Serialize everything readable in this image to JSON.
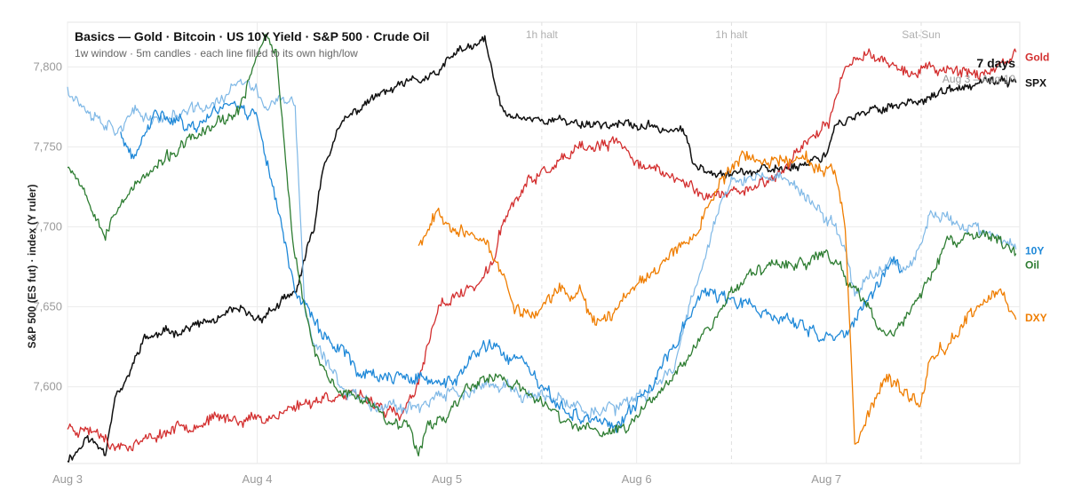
{
  "chart_data": {
    "type": "line",
    "title": "Basics — Gold · Bitcoin · US 10Y Yield · S&P 500 · Crude Oil",
    "subtitle": "1w window · 5m candles · each line filled to its own high/low",
    "ylabel": "S&P 500 (ES fut) · index (Y ruler)",
    "ylim": [
      7552,
      7828
    ],
    "y_ticks": [
      7600,
      7650,
      7700,
      7750,
      7800
    ],
    "y_tick_labels": [
      "7,600",
      "7,650",
      "7,700",
      "7,750",
      "7,800"
    ],
    "x_range": [
      0,
      5.02
    ],
    "x_ticks": [
      0,
      1,
      2,
      3,
      4
    ],
    "x_tick_labels": [
      "Aug 3",
      "Aug 4",
      "Aug 5",
      "Aug 6",
      "Aug 7"
    ],
    "grid": true,
    "session_markers": [
      {
        "label": "1h halt",
        "x": 2.5
      },
      {
        "label": "1h halt",
        "x": 3.5
      },
      {
        "label": "Sat-Sun",
        "x": 4.5
      }
    ],
    "range_badge": {
      "title": "7 days",
      "subtitle": "Aug 3 – Aug 10"
    },
    "series": [
      {
        "name": "SPX",
        "color": "#111111",
        "width": 1.5,
        "vol": 1.4,
        "seed": 11,
        "points": [
          [
            0,
            7555
          ],
          [
            0.05,
            7560
          ],
          [
            0.1,
            7568
          ],
          [
            0.2,
            7560
          ],
          [
            0.25,
            7595
          ],
          [
            0.3,
            7600
          ],
          [
            0.4,
            7630
          ],
          [
            0.6,
            7636
          ],
          [
            0.8,
            7642
          ],
          [
            0.9,
            7648
          ],
          [
            1.0,
            7642
          ],
          [
            1.1,
            7650
          ],
          [
            1.2,
            7658
          ],
          [
            1.3,
            7700
          ],
          [
            1.35,
            7740
          ],
          [
            1.45,
            7765
          ],
          [
            1.6,
            7780
          ],
          [
            1.8,
            7790
          ],
          [
            1.95,
            7795
          ],
          [
            2.05,
            7810
          ],
          [
            2.15,
            7812
          ],
          [
            2.2,
            7818
          ],
          [
            2.25,
            7790
          ],
          [
            2.3,
            7770
          ],
          [
            2.45,
            7768
          ],
          [
            2.7,
            7765
          ],
          [
            2.9,
            7764
          ],
          [
            3.1,
            7762
          ],
          [
            3.25,
            7760
          ],
          [
            3.3,
            7738
          ],
          [
            3.5,
            7734
          ],
          [
            3.7,
            7735
          ],
          [
            3.9,
            7740
          ],
          [
            4.0,
            7746
          ],
          [
            4.05,
            7765
          ],
          [
            4.15,
            7768
          ],
          [
            4.3,
            7775
          ],
          [
            4.45,
            7778
          ],
          [
            4.55,
            7782
          ],
          [
            4.7,
            7786
          ],
          [
            4.85,
            7790
          ],
          [
            5.0,
            7792
          ]
        ]
      },
      {
        "name": "Gold",
        "color": "#d32f2f",
        "width": 1.3,
        "vol": 1.8,
        "seed": 23,
        "points": [
          [
            0,
            7575
          ],
          [
            0.2,
            7572
          ],
          [
            0.22,
            7562
          ],
          [
            0.4,
            7566
          ],
          [
            0.6,
            7576
          ],
          [
            0.8,
            7580
          ],
          [
            1.0,
            7580
          ],
          [
            1.1,
            7582
          ],
          [
            1.2,
            7588
          ],
          [
            1.4,
            7595
          ],
          [
            1.6,
            7592
          ],
          [
            1.75,
            7580
          ],
          [
            1.85,
            7600
          ],
          [
            1.95,
            7650
          ],
          [
            2.1,
            7660
          ],
          [
            2.2,
            7668
          ],
          [
            2.25,
            7680
          ],
          [
            2.3,
            7705
          ],
          [
            2.35,
            7715
          ],
          [
            2.45,
            7730
          ],
          [
            2.6,
            7740
          ],
          [
            2.7,
            7748
          ],
          [
            2.9,
            7752
          ],
          [
            3.0,
            7742
          ],
          [
            3.1,
            7735
          ],
          [
            3.2,
            7730
          ],
          [
            3.3,
            7725
          ],
          [
            3.4,
            7718
          ],
          [
            3.6,
            7725
          ],
          [
            3.75,
            7732
          ],
          [
            3.8,
            7740
          ],
          [
            3.9,
            7755
          ],
          [
            4.0,
            7760
          ],
          [
            4.1,
            7800
          ],
          [
            4.2,
            7810
          ],
          [
            4.3,
            7805
          ],
          [
            4.45,
            7795
          ],
          [
            4.55,
            7800
          ],
          [
            4.7,
            7798
          ],
          [
            4.85,
            7796
          ],
          [
            4.95,
            7800
          ],
          [
            5.0,
            7808
          ]
        ]
      },
      {
        "name": "10Y",
        "color": "#7fb8e6",
        "width": 1.2,
        "vol": 2.0,
        "seed": 37,
        "points": [
          [
            0,
            7788
          ],
          [
            0.05,
            7780
          ],
          [
            0.15,
            7770
          ],
          [
            0.25,
            7762
          ],
          [
            0.35,
            7770
          ],
          [
            0.5,
            7768
          ],
          [
            0.65,
            7772
          ],
          [
            0.8,
            7778
          ],
          [
            0.9,
            7790
          ],
          [
            1.0,
            7785
          ],
          [
            1.05,
            7775
          ],
          [
            1.1,
            7780
          ],
          [
            1.2,
            7775
          ],
          [
            1.25,
            7650
          ],
          [
            1.3,
            7625
          ],
          [
            1.45,
            7600
          ],
          [
            1.6,
            7590
          ],
          [
            1.8,
            7588
          ],
          [
            1.9,
            7590
          ],
          [
            2.0,
            7595
          ],
          [
            2.2,
            7598
          ],
          [
            2.3,
            7602
          ],
          [
            2.4,
            7595
          ],
          [
            2.6,
            7590
          ],
          [
            2.8,
            7585
          ],
          [
            3.0,
            7590
          ],
          [
            3.1,
            7600
          ],
          [
            3.2,
            7615
          ],
          [
            3.3,
            7660
          ],
          [
            3.4,
            7700
          ],
          [
            3.5,
            7728
          ],
          [
            3.6,
            7730
          ],
          [
            3.75,
            7732
          ],
          [
            3.85,
            7725
          ],
          [
            3.95,
            7710
          ],
          [
            4.05,
            7700
          ],
          [
            4.1,
            7685
          ],
          [
            4.15,
            7660
          ],
          [
            4.25,
            7670
          ],
          [
            4.35,
            7680
          ],
          [
            4.45,
            7675
          ],
          [
            4.55,
            7710
          ],
          [
            4.65,
            7705
          ],
          [
            4.75,
            7700
          ],
          [
            4.85,
            7695
          ],
          [
            4.95,
            7690
          ],
          [
            5.0,
            7686
          ]
        ]
      },
      {
        "name": "",
        "color": "#1e88d8",
        "width": 1.3,
        "vol": 2.1,
        "seed": 41,
        "points": [
          [
            0.28,
            7758
          ],
          [
            0.35,
            7740
          ],
          [
            0.45,
            7768
          ],
          [
            0.55,
            7770
          ],
          [
            0.65,
            7762
          ],
          [
            0.75,
            7770
          ],
          [
            0.85,
            7780
          ],
          [
            0.9,
            7775
          ],
          [
            1.0,
            7770
          ],
          [
            1.2,
            7662
          ],
          [
            1.35,
            7630
          ],
          [
            1.45,
            7625
          ],
          [
            1.55,
            7608
          ],
          [
            2.0,
            7602
          ],
          [
            2.1,
            7612
          ],
          [
            2.2,
            7625
          ],
          [
            2.4,
            7615
          ],
          [
            2.55,
            7590
          ],
          [
            2.7,
            7582
          ],
          [
            2.9,
            7575
          ],
          [
            3.05,
            7595
          ],
          [
            3.25,
            7640
          ],
          [
            3.35,
            7660
          ],
          [
            4.05,
            7630
          ],
          [
            4.15,
            7640
          ],
          [
            4.25,
            7660
          ],
          [
            4.35,
            7680
          ],
          [
            4.4,
            7675
          ]
        ]
      },
      {
        "name": "Oil",
        "color": "#2e7d32",
        "width": 1.3,
        "vol": 1.8,
        "seed": 53,
        "points": [
          [
            0,
            7740
          ],
          [
            0.05,
            7732
          ],
          [
            0.1,
            7720
          ],
          [
            0.15,
            7710
          ],
          [
            0.2,
            7695
          ],
          [
            0.3,
            7720
          ],
          [
            0.4,
            7730
          ],
          [
            0.5,
            7740
          ],
          [
            0.6,
            7750
          ],
          [
            0.8,
            7765
          ],
          [
            0.9,
            7770
          ],
          [
            0.95,
            7790
          ],
          [
            1.0,
            7810
          ],
          [
            1.05,
            7820
          ],
          [
            1.1,
            7810
          ],
          [
            1.15,
            7740
          ],
          [
            1.2,
            7680
          ],
          [
            1.25,
            7650
          ],
          [
            1.3,
            7620
          ],
          [
            1.4,
            7600
          ],
          [
            1.5,
            7595
          ],
          [
            1.6,
            7590
          ],
          [
            1.7,
            7580
          ],
          [
            1.8,
            7575
          ],
          [
            1.85,
            7560
          ],
          [
            1.9,
            7578
          ],
          [
            2.0,
            7580
          ],
          [
            2.1,
            7600
          ],
          [
            2.2,
            7605
          ],
          [
            2.3,
            7605
          ],
          [
            2.5,
            7590
          ],
          [
            2.6,
            7580
          ],
          [
            2.8,
            7570
          ],
          [
            2.95,
            7575
          ],
          [
            3.1,
            7595
          ],
          [
            3.2,
            7610
          ],
          [
            3.3,
            7625
          ],
          [
            3.4,
            7640
          ],
          [
            3.5,
            7660
          ],
          [
            3.6,
            7670
          ],
          [
            3.7,
            7675
          ],
          [
            3.8,
            7680
          ],
          [
            3.9,
            7675
          ],
          [
            4.0,
            7685
          ],
          [
            4.1,
            7670
          ],
          [
            4.2,
            7650
          ],
          [
            4.3,
            7635
          ],
          [
            4.35,
            7630
          ],
          [
            4.45,
            7650
          ],
          [
            4.55,
            7670
          ],
          [
            4.65,
            7690
          ],
          [
            4.8,
            7695
          ],
          [
            4.9,
            7692
          ],
          [
            5.0,
            7685
          ]
        ]
      },
      {
        "name": "DXY",
        "color": "#ef7d00",
        "width": 1.3,
        "vol": 2.0,
        "seed": 67,
        "points": [
          [
            1.85,
            7690
          ],
          [
            1.95,
            7710
          ],
          [
            2.1,
            7695
          ],
          [
            2.2,
            7690
          ],
          [
            2.3,
            7670
          ],
          [
            2.35,
            7650
          ],
          [
            2.45,
            7645
          ],
          [
            2.55,
            7655
          ],
          [
            2.6,
            7660
          ],
          [
            2.65,
            7655
          ],
          [
            2.7,
            7660
          ],
          [
            2.75,
            7645
          ],
          [
            2.85,
            7640
          ],
          [
            2.95,
            7660
          ],
          [
            3.05,
            7670
          ],
          [
            3.15,
            7680
          ],
          [
            3.25,
            7690
          ],
          [
            3.35,
            7705
          ],
          [
            3.45,
            7730
          ],
          [
            3.55,
            7745
          ],
          [
            3.65,
            7740
          ],
          [
            3.75,
            7742
          ],
          [
            3.85,
            7745
          ],
          [
            3.95,
            7738
          ],
          [
            4.05,
            7730
          ],
          [
            4.1,
            7700
          ],
          [
            4.15,
            7560
          ],
          [
            4.25,
            7590
          ],
          [
            4.3,
            7605
          ],
          [
            4.4,
            7595
          ],
          [
            4.5,
            7590
          ],
          [
            4.55,
            7620
          ],
          [
            4.65,
            7630
          ],
          [
            4.8,
            7650
          ],
          [
            4.9,
            7660
          ],
          [
            5.0,
            7645
          ]
        ]
      }
    ]
  },
  "legend_labels": [
    {
      "name": "Gold",
      "color": "#d32f2f",
      "y": 7806
    },
    {
      "name": "SPX",
      "color": "#111111",
      "y": 7790
    },
    {
      "name": "10Y",
      "color": "#1e88d8",
      "y": 7685
    },
    {
      "name": "Oil",
      "color": "#2e7d32",
      "y": 7676
    },
    {
      "name": "DXY",
      "color": "#ef7d00",
      "y": 7643
    }
  ]
}
